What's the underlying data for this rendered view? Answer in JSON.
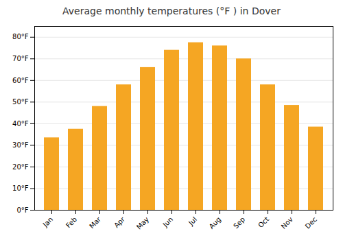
{
  "chart_data": {
    "type": "bar",
    "title": "Average monthly temperatures (°F ) in Dover",
    "categories": [
      "Jan",
      "Feb",
      "Mar",
      "Apr",
      "May",
      "Jun",
      "Jul",
      "Aug",
      "Sep",
      "Oct",
      "Nov",
      "Dec"
    ],
    "values": [
      33.5,
      37.5,
      48,
      58,
      66,
      74,
      77.5,
      76,
      70,
      58,
      48.5,
      38.5
    ],
    "color": "#F5A623",
    "ylim": [
      0,
      85
    ],
    "yticks": [
      {
        "value": 0,
        "label": "0°F"
      },
      {
        "value": 10,
        "label": "10°F"
      },
      {
        "value": 20,
        "label": "20°F"
      },
      {
        "value": 30,
        "label": "30°F"
      },
      {
        "value": 40,
        "label": "40°F"
      },
      {
        "value": 50,
        "label": "50°F"
      },
      {
        "value": 60,
        "label": "60°F"
      },
      {
        "value": 70,
        "label": "70°F"
      },
      {
        "value": 80,
        "label": "80°F"
      }
    ],
    "grid": true
  }
}
